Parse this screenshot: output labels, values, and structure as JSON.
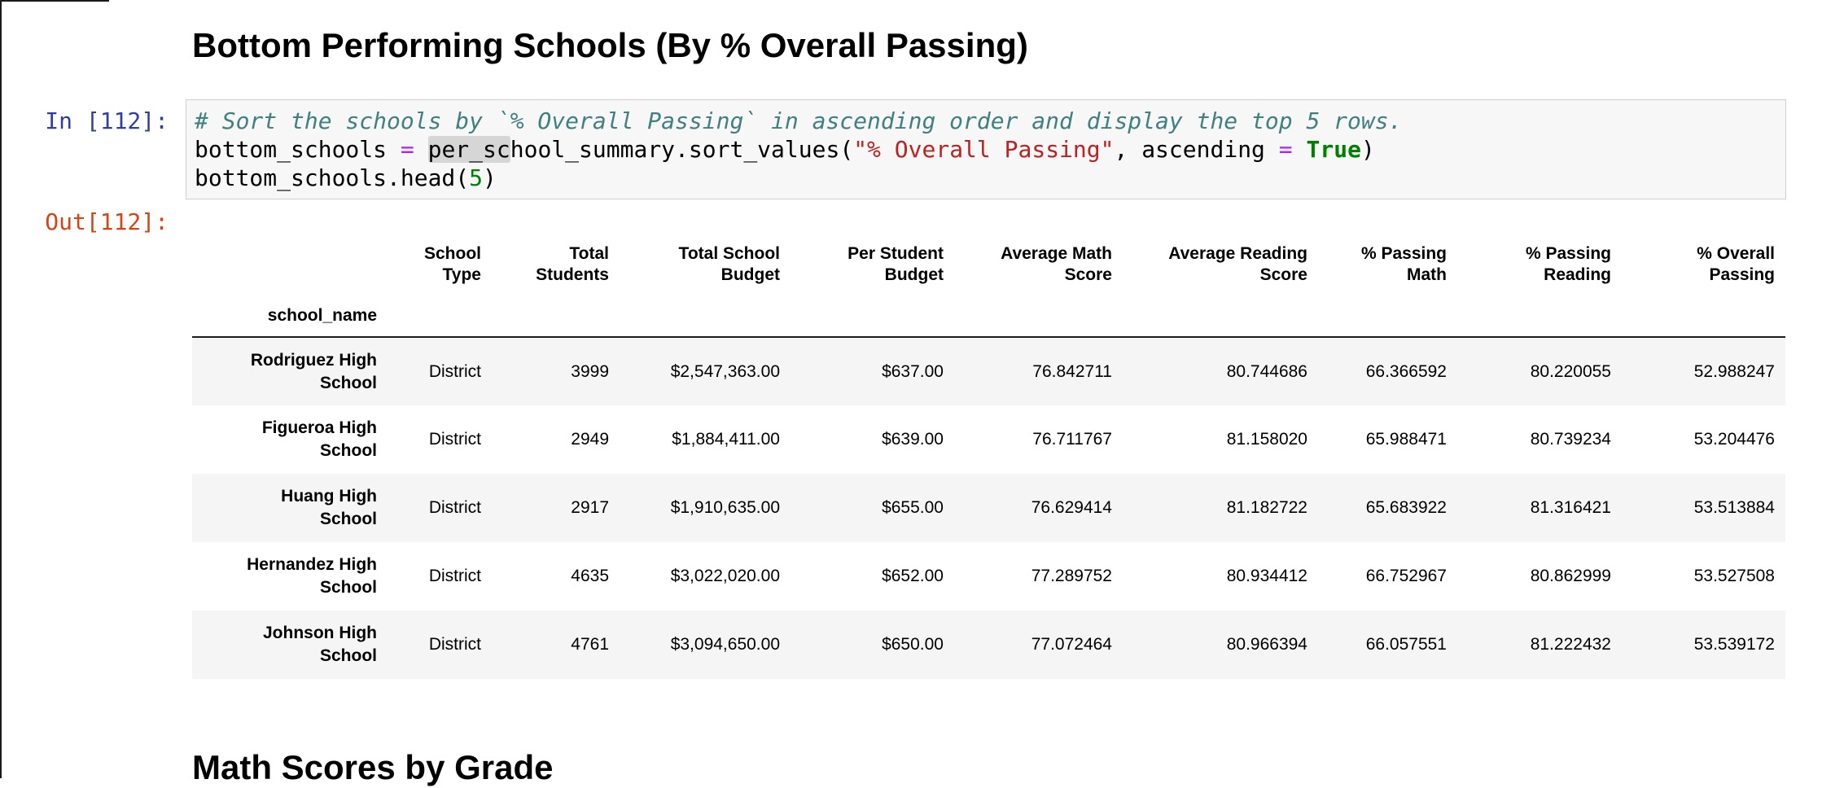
{
  "page": {
    "heading_top": "Bottom Performing Schools (By % Overall Passing)",
    "heading_bottom": "Math Scores by Grade"
  },
  "colors": {
    "in_prompt": "#303F9F",
    "out_prompt": "#D84315",
    "code_comment": "#408080",
    "code_operator": "#AA22FF",
    "code_string": "#BA2121",
    "code_keyword": "#008000",
    "code_number": "#008000",
    "code_cell_bg": "#f7f7f7",
    "row_stripe": "#f5f5f5"
  },
  "input_cell": {
    "prompt": "In [112]:",
    "code_lines": [
      [
        {
          "t": "# Sort the schools by `% Overall Passing` in ascending order and display the top 5 rows.",
          "c": "com"
        }
      ],
      [
        {
          "t": "bottom_schools ",
          "c": "plain"
        },
        {
          "t": "=",
          "c": "op"
        },
        {
          "t": " ",
          "c": "plain"
        },
        {
          "t": "per_sc",
          "c": "plain",
          "hl": true
        },
        {
          "t": "hool_summary.sort_values(",
          "c": "plain"
        },
        {
          "t": "\"% Overall Passing\"",
          "c": "str"
        },
        {
          "t": ", ascending ",
          "c": "plain"
        },
        {
          "t": "=",
          "c": "op"
        },
        {
          "t": " ",
          "c": "plain"
        },
        {
          "t": "True",
          "c": "kw"
        },
        {
          "t": ")",
          "c": "plain"
        }
      ],
      [
        {
          "t": "bottom_schools.head(",
          "c": "plain"
        },
        {
          "t": "5",
          "c": "num"
        },
        {
          "t": ")",
          "c": "plain"
        }
      ]
    ]
  },
  "output_cell": {
    "prompt": "Out[112]:",
    "table": {
      "index_name": "school_name",
      "columns": [
        "School\nType",
        "Total\nStudents",
        "Total School\nBudget",
        "Per Student\nBudget",
        "Average Math\nScore",
        "Average Reading\nScore",
        "% Passing\nMath",
        "% Passing\nReading",
        "% Overall\nPassing"
      ],
      "rows": [
        {
          "index": "Rodriguez High\nSchool",
          "values": [
            "District",
            "3999",
            "$2,547,363.00",
            "$637.00",
            "76.842711",
            "80.744686",
            "66.366592",
            "80.220055",
            "52.988247"
          ]
        },
        {
          "index": "Figueroa High\nSchool",
          "values": [
            "District",
            "2949",
            "$1,884,411.00",
            "$639.00",
            "76.711767",
            "81.158020",
            "65.988471",
            "80.739234",
            "53.204476"
          ]
        },
        {
          "index": "Huang High\nSchool",
          "values": [
            "District",
            "2917",
            "$1,910,635.00",
            "$655.00",
            "76.629414",
            "81.182722",
            "65.683922",
            "81.316421",
            "53.513884"
          ]
        },
        {
          "index": "Hernandez High\nSchool",
          "values": [
            "District",
            "4635",
            "$3,022,020.00",
            "$652.00",
            "77.289752",
            "80.934412",
            "66.752967",
            "80.862999",
            "53.527508"
          ]
        },
        {
          "index": "Johnson High\nSchool",
          "values": [
            "District",
            "4761",
            "$3,094,650.00",
            "$650.00",
            "77.072464",
            "80.966394",
            "66.057551",
            "81.222432",
            "53.539172"
          ]
        }
      ]
    }
  }
}
